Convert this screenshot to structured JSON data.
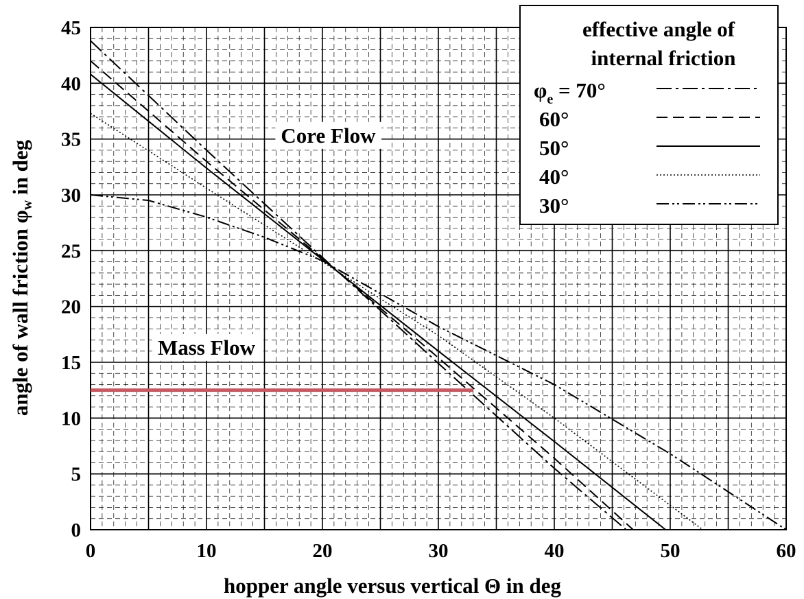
{
  "chart_data": {
    "type": "line",
    "xlabel": "hopper angle versus vertical Θ in deg",
    "ylabel_parts": {
      "pre": "angle of wall friction ",
      "sym": "φ",
      "sub": "w",
      "post": " in deg"
    },
    "xlim": [
      0,
      60
    ],
    "ylim": [
      0,
      45
    ],
    "x_ticks": [
      0,
      10,
      20,
      30,
      40,
      50,
      60
    ],
    "y_ticks": [
      0,
      5,
      10,
      15,
      20,
      25,
      30,
      35,
      40,
      45
    ],
    "grid": true,
    "legend": {
      "position": "top-right",
      "title_line1": "effective angle of",
      "title_line2": "internal friction",
      "first_prefix": {
        "sym": "φ",
        "sub": "e",
        "rest": " = 70°"
      }
    },
    "regions": [
      {
        "label": "Core Flow",
        "x": 20.5,
        "y": 35.3
      },
      {
        "label": "Mass Flow",
        "x": 10.0,
        "y": 16.3
      }
    ],
    "highlight": {
      "y": 12.5,
      "x_start": 0,
      "x_end": 33,
      "color": "#c55a63"
    },
    "series": [
      {
        "legend_label": "70°",
        "style": "dashdot",
        "x": [
          0,
          10,
          20,
          30,
          40,
          46.2
        ],
        "y": [
          43.8,
          34.0,
          24.4,
          14.9,
          5.5,
          0
        ]
      },
      {
        "legend_label": "60°",
        "style": "dashed",
        "x": [
          0,
          10,
          20,
          30,
          40,
          46.8
        ],
        "y": [
          42.0,
          33.0,
          24.3,
          15.4,
          6.4,
          0
        ]
      },
      {
        "legend_label": "50°",
        "style": "solid",
        "x": [
          0,
          10,
          20,
          30,
          40,
          49.6
        ],
        "y": [
          40.8,
          32.4,
          24.2,
          16.0,
          7.9,
          0
        ]
      },
      {
        "legend_label": "40°",
        "style": "dotted",
        "x": [
          0,
          10,
          20,
          30,
          40,
          52.8
        ],
        "y": [
          37.3,
          30.6,
          24.0,
          17.4,
          10.0,
          0
        ]
      },
      {
        "legend_label": "30°",
        "style": "dashdotdot",
        "x": [
          0,
          5,
          10,
          15,
          20,
          30,
          40,
          50,
          60
        ],
        "y": [
          30.0,
          29.5,
          28.0,
          26.2,
          24.1,
          18.2,
          13.0,
          6.8,
          0
        ]
      }
    ]
  }
}
